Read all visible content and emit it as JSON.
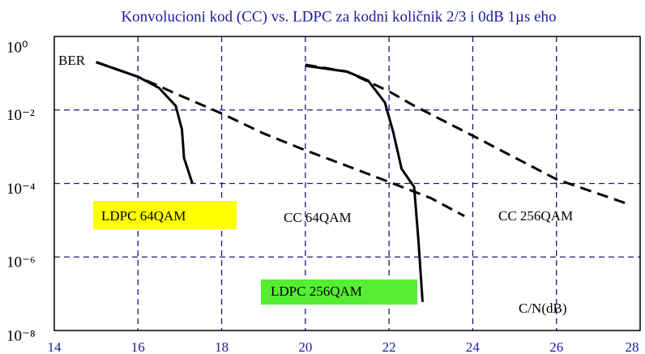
{
  "chart_data": {
    "type": "line",
    "title": "Konvolucioni kod (CC) vs. LDPC za kodni količnik 2/3 i 0dB 1µs eho",
    "y_label": "BER",
    "x_label": "C/N(dB)",
    "log_y": true,
    "grid": true,
    "xlim": [
      14,
      28
    ],
    "xticks": [
      14,
      16,
      18,
      20,
      22,
      24,
      26,
      28
    ],
    "ylim": [
      1e-08,
      1
    ],
    "yticks": [
      {
        "value": 1,
        "label": "10⁰"
      },
      {
        "value": 0.01,
        "label": "10⁻²"
      },
      {
        "value": 0.0001,
        "label": "10⁻⁴"
      },
      {
        "value": 1e-06,
        "label": "10⁻⁶"
      },
      {
        "value": 1e-08,
        "label": "10⁻⁸"
      }
    ],
    "series": [
      {
        "name": "LDPC 64QAM",
        "color": "#000000",
        "style": "solid",
        "x": [
          15,
          16,
          16.5,
          16.9,
          17.05,
          17.1,
          17.3
        ],
        "values": [
          0.2,
          0.08,
          0.04,
          0.013,
          0.003,
          0.0005,
          0.0001
        ]
      },
      {
        "name": "CC 64QAM",
        "color": "#000000",
        "style": "dashed",
        "x": [
          15,
          16,
          17,
          18,
          19,
          20,
          21,
          22,
          23,
          23.8
        ],
        "values": [
          0.2,
          0.08,
          0.025,
          0.008,
          0.0023,
          0.0008,
          0.0003,
          0.00011,
          4e-05,
          1.3e-05
        ]
      },
      {
        "name": "CC 256QAM",
        "color": "#000000",
        "style": "dashed",
        "x": [
          20,
          21,
          22,
          22.6,
          24,
          26,
          27.7
        ],
        "values": [
          0.17,
          0.11,
          0.032,
          0.013,
          0.002,
          0.00013,
          2.8e-05
        ]
      },
      {
        "name": "LDPC 256QAM",
        "color": "#000000",
        "style": "solid",
        "x": [
          20,
          21,
          21.5,
          21.9,
          22.1,
          22.3,
          22.6,
          22.7,
          22.8
        ],
        "values": [
          0.16,
          0.11,
          0.063,
          0.016,
          0.0025,
          0.00025,
          8e-05,
          3e-06,
          6e-08
        ]
      }
    ]
  }
}
